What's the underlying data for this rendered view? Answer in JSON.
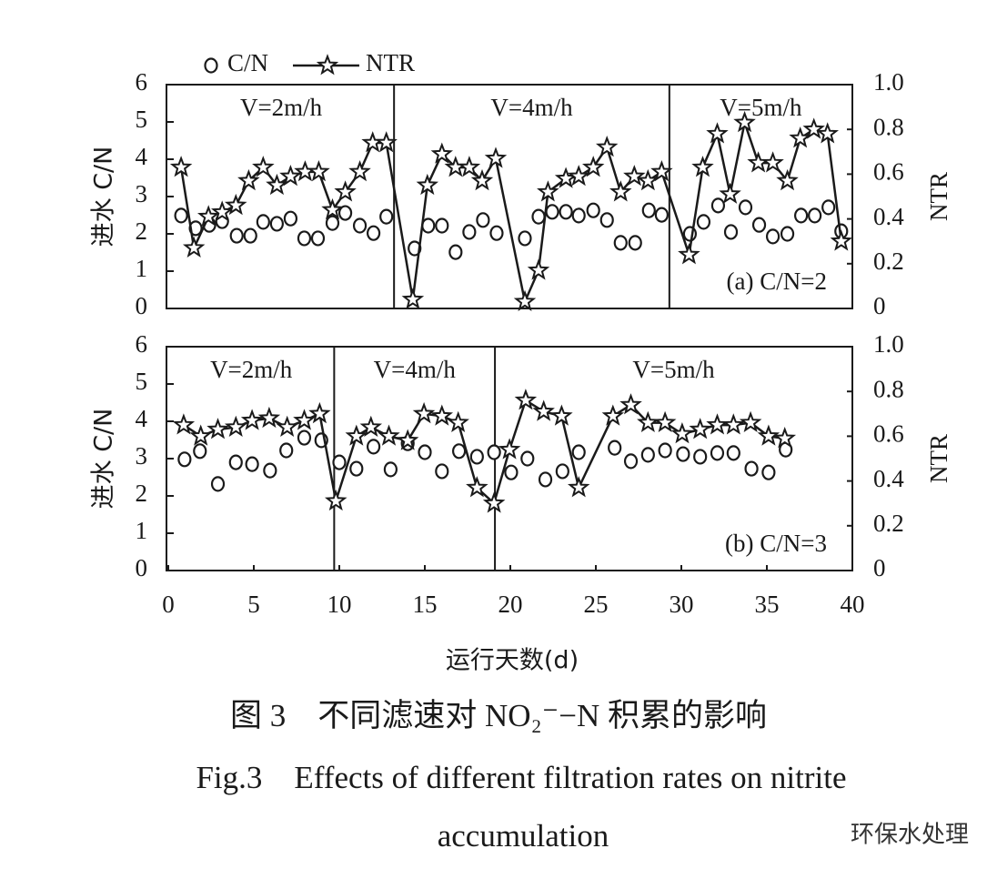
{
  "chart_data": [
    {
      "type": "line",
      "annotations": [
        "V=2m/h",
        "V=4m/h",
        "V=5m/h"
      ],
      "note": "(a) C/N=2",
      "dividers": [
        13.2,
        29.3
      ],
      "xlim": [
        0,
        40
      ],
      "ylim": [
        0,
        6
      ],
      "yticks": [
        0,
        1,
        2,
        3,
        4,
        5,
        6
      ],
      "y2lim": [
        0,
        1
      ],
      "y2ticks": [
        0,
        0.2,
        0.4,
        0.6,
        0.8,
        {
          "value": 1,
          "label": "1.0"
        }
      ],
      "ylabel": "进水 C/N",
      "y2label": "NTR",
      "legend": "top",
      "series": [
        {
          "name": "C/N",
          "marker": "circle",
          "color": "#1a1a1a",
          "x": [
            0.75,
            1.6,
            2.4,
            3.15,
            4.0,
            4.8,
            5.55,
            6.35,
            7.15,
            7.95,
            8.75,
            9.6,
            10.35,
            11.2,
            12.0,
            12.75,
            14.4,
            15.2,
            16.0,
            16.8,
            17.6,
            18.4,
            19.2,
            20.85,
            21.65,
            22.45,
            23.25,
            24.0,
            24.85,
            25.65,
            26.45,
            27.3,
            28.1,
            28.85,
            30.5,
            31.3,
            32.15,
            32.9,
            33.75,
            34.55,
            35.35,
            36.2,
            37.0,
            37.8,
            38.6,
            39.35
          ],
          "values": [
            2.49,
            2.15,
            2.24,
            2.34,
            1.95,
            1.95,
            2.32,
            2.27,
            2.41,
            1.88,
            1.88,
            2.29,
            2.56,
            2.22,
            2.02,
            2.46,
            1.61,
            2.22,
            2.22,
            1.51,
            2.05,
            2.37,
            2.02,
            1.88,
            2.46,
            2.59,
            2.59,
            2.49,
            2.63,
            2.37,
            1.76,
            1.76,
            2.63,
            2.51,
            2.0,
            2.32,
            2.76,
            2.05,
            2.71,
            2.24,
            1.93,
            2.0,
            2.49,
            2.49,
            2.71,
            2.07
          ]
        },
        {
          "name": "NTR",
          "marker": "star",
          "axis": "y2",
          "color": "#1a1a1a",
          "x": [
            0.75,
            1.5,
            2.35,
            3.15,
            3.95,
            4.7,
            5.55,
            6.35,
            7.15,
            8.0,
            8.8,
            9.6,
            10.35,
            11.2,
            11.95,
            12.75,
            14.3,
            15.15,
            16.0,
            16.8,
            17.6,
            18.35,
            19.15,
            20.85,
            21.65,
            22.2,
            23.25,
            24.0,
            24.85,
            25.65,
            26.45,
            27.25,
            28.05,
            28.85,
            30.45,
            31.25,
            32.1,
            32.85,
            33.7,
            34.5,
            35.35,
            36.2,
            36.95,
            37.75,
            38.55,
            39.35
          ],
          "values": [
            0.63,
            0.27,
            0.41,
            0.43,
            0.46,
            0.57,
            0.63,
            0.55,
            0.59,
            0.61,
            0.61,
            0.44,
            0.52,
            0.61,
            0.74,
            0.74,
            0.04,
            0.55,
            0.69,
            0.63,
            0.63,
            0.57,
            0.67,
            0.03,
            0.17,
            0.52,
            0.58,
            0.59,
            0.63,
            0.72,
            0.52,
            0.59,
            0.57,
            0.61,
            0.24,
            0.63,
            0.78,
            0.51,
            0.83,
            0.65,
            0.65,
            0.57,
            0.76,
            0.8,
            0.78,
            0.3
          ]
        }
      ]
    },
    {
      "type": "line",
      "annotations": [
        "V=2m/h",
        "V=4m/h",
        "V=5m/h"
      ],
      "note": "(b) C/N=3",
      "dividers": [
        9.7,
        19.1
      ],
      "xlim": [
        0,
        40
      ],
      "xticks": [
        0,
        5,
        10,
        15,
        20,
        25,
        30,
        35,
        40
      ],
      "xlabel": "运行天数(d)",
      "ylim": [
        0,
        6
      ],
      "yticks": [
        0,
        1,
        2,
        3,
        4,
        5,
        6
      ],
      "y2lim": [
        0,
        1
      ],
      "y2ticks": [
        0,
        0.2,
        0.4,
        0.6,
        0.8,
        {
          "value": 1,
          "label": "1.0"
        }
      ],
      "ylabel": "进水 C/N",
      "y2label": "NTR",
      "series": [
        {
          "marker": "circle",
          "color": "#1a1a1a",
          "x": [
            0.95,
            1.85,
            2.9,
            3.95,
            4.9,
            5.95,
            6.9,
            7.95,
            8.95,
            10.0,
            11.0,
            12.0,
            13.0,
            14.0,
            15.0,
            16.0,
            17.0,
            18.05,
            19.05,
            20.05,
            21.0,
            22.05,
            23.05,
            24.0,
            26.1,
            27.05,
            28.05,
            29.05,
            30.1,
            31.1,
            32.1,
            33.05,
            34.1,
            35.1,
            36.1
          ],
          "values": [
            2.98,
            3.2,
            2.32,
            2.9,
            2.85,
            2.68,
            3.22,
            3.56,
            3.49,
            2.9,
            2.73,
            3.32,
            2.71,
            3.41,
            3.17,
            2.66,
            3.2,
            3.05,
            3.17,
            2.63,
            3.0,
            2.44,
            2.66,
            3.17,
            3.29,
            2.93,
            3.1,
            3.22,
            3.12,
            3.05,
            3.15,
            3.15,
            2.73,
            2.63,
            3.24
          ]
        },
        {
          "marker": "star",
          "axis": "y2",
          "color": "#1a1a1a",
          "x": [
            0.9,
            1.9,
            2.9,
            3.95,
            4.9,
            5.9,
            6.95,
            7.95,
            8.85,
            9.8,
            11.0,
            11.85,
            12.9,
            14.0,
            14.95,
            16.0,
            16.95,
            18.05,
            19.05,
            19.95,
            20.9,
            21.95,
            23.0,
            24.0,
            26.0,
            27.05,
            28.05,
            29.05,
            30.05,
            31.1,
            32.1,
            33.05,
            34.05,
            35.1,
            36.05
          ],
          "values": [
            0.65,
            0.6,
            0.63,
            0.64,
            0.67,
            0.68,
            0.64,
            0.67,
            0.7,
            0.31,
            0.6,
            0.64,
            0.6,
            0.58,
            0.7,
            0.69,
            0.66,
            0.37,
            0.3,
            0.54,
            0.76,
            0.71,
            0.69,
            0.37,
            0.69,
            0.74,
            0.66,
            0.66,
            0.61,
            0.63,
            0.65,
            0.65,
            0.66,
            0.6,
            0.59
          ]
        }
      ]
    }
  ],
  "caption": [
    "图 3　不同滤速对 NO₂⁻−N 积累的影响",
    "Fig.3　Effects of different filtration rates on nitrite",
    "accumulation"
  ],
  "watermark": "环保水处理"
}
